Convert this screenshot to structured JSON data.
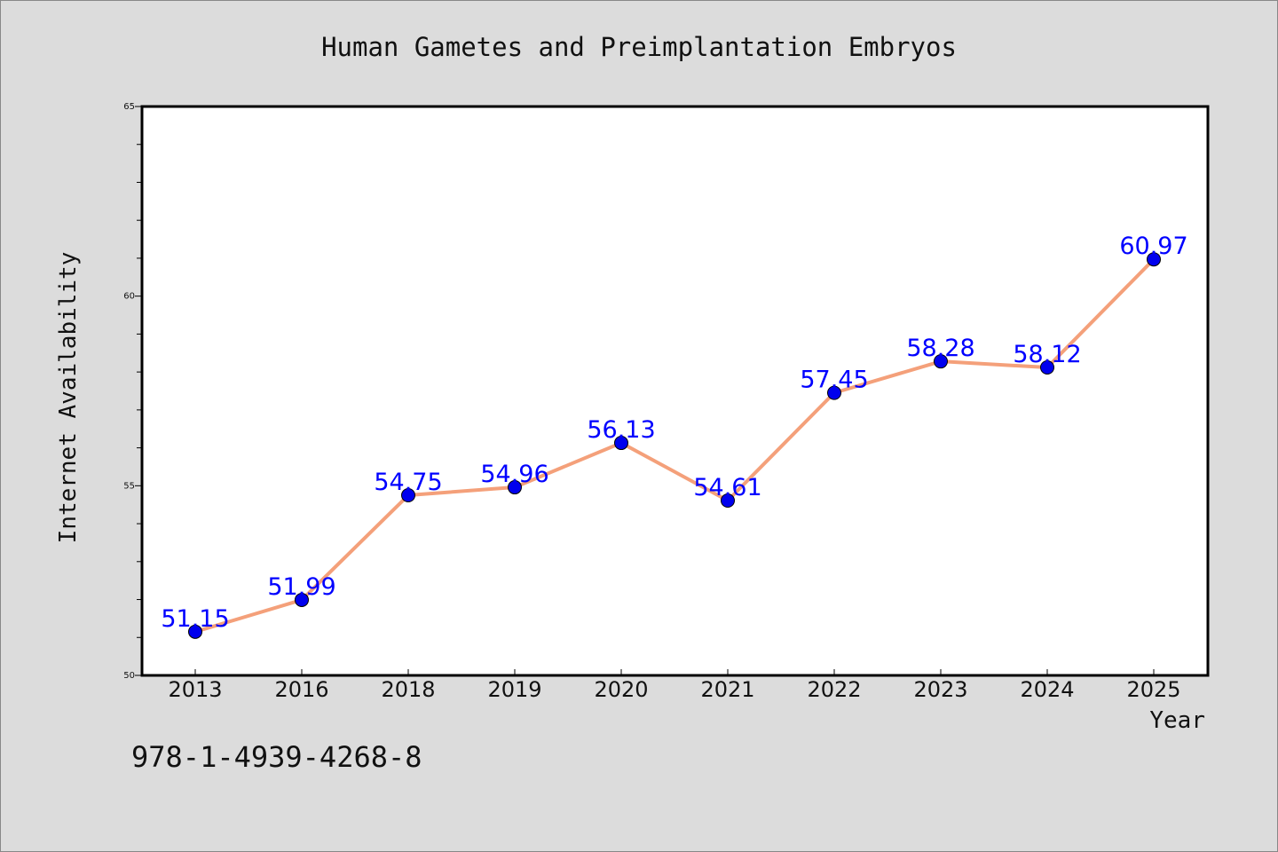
{
  "chart_data": {
    "type": "line",
    "title": "Human Gametes and Preimplantation Embryos",
    "xlabel": "Year",
    "ylabel": "Internet Availability",
    "categories": [
      "2013",
      "2016",
      "2018",
      "2019",
      "2020",
      "2021",
      "2022",
      "2023",
      "2024",
      "2025"
    ],
    "series": [
      {
        "values": [
          51.15,
          51.99,
          54.75,
          54.96,
          56.13,
          54.61,
          57.45,
          58.28,
          58.12,
          60.97
        ],
        "labels": [
          "51.15",
          "51.99",
          "54.75",
          "54.96",
          "56.13",
          "54.61",
          "57.45",
          "58.28",
          "58.12",
          "60.97"
        ]
      }
    ],
    "ylim": [
      50,
      65
    ],
    "yticks": [
      "50",
      "55",
      "60",
      "65"
    ],
    "grid": false,
    "line_color": "#f4a07a",
    "marker_color": "#0000ee",
    "label_color": "#0000ff"
  },
  "footer": {
    "isbn": "978-1-4939-4268-8"
  }
}
